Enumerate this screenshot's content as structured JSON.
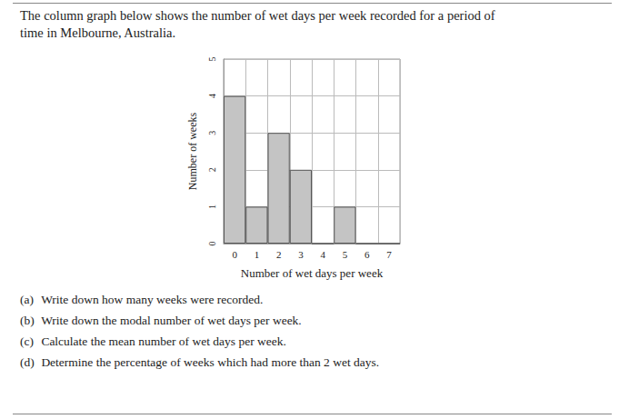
{
  "intro": [
    "The column graph below shows the number of wet days per week recorded for a period of",
    "time in Melbourne, Australia."
  ],
  "chart_data": {
    "type": "bar",
    "x_label": "Number of wet days per week",
    "y_label": "Number of weeks",
    "categories": [
      "0",
      "1",
      "2",
      "3",
      "4",
      "5",
      "6",
      "7"
    ],
    "values": [
      4,
      1,
      3,
      2,
      0,
      1,
      0,
      0
    ],
    "color": "#c4c4c4",
    "ylim": [
      0,
      5
    ],
    "yticks": [
      0,
      1,
      2,
      3,
      4,
      5
    ],
    "grid": true
  },
  "questions": [
    {
      "label": "(a)",
      "text": "Write down how many weeks were recorded."
    },
    {
      "label": "(b)",
      "text": "Write down the modal number of wet days per week."
    },
    {
      "label": "(c)",
      "text": "Calculate the mean number of wet days per week."
    },
    {
      "label": "(d)",
      "text": "Determine the percentage of weeks which had more than 2 wet days."
    }
  ]
}
